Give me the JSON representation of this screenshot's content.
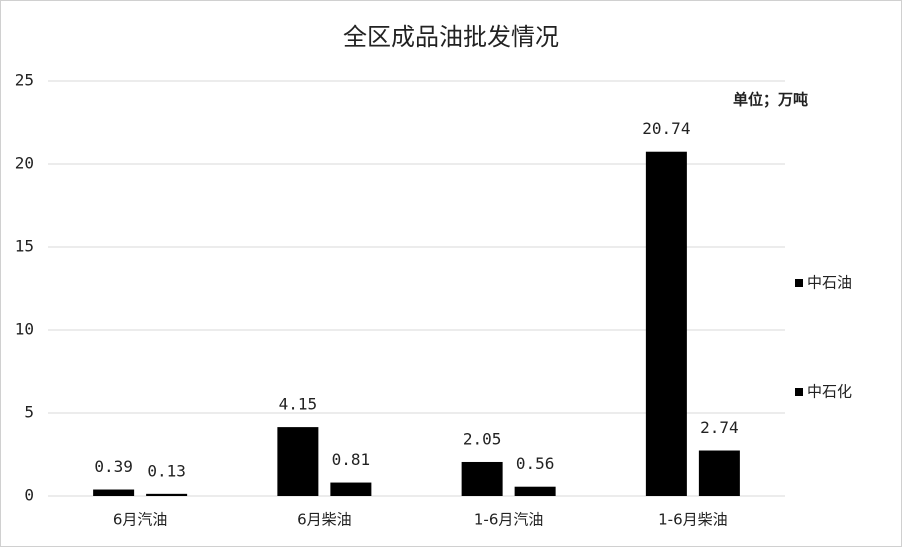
{
  "chart_data": {
    "type": "bar",
    "title": "全区成品油批发情况",
    "annotation": "单位；万吨",
    "categories": [
      "6月汽油",
      "6月柴油",
      "1-6月汽油",
      "1-6月柴油"
    ],
    "series": [
      {
        "name": "中石油",
        "color": "#000000",
        "values": [
          0.39,
          4.15,
          2.05,
          20.74
        ]
      },
      {
        "name": "中石化",
        "color": "#000000",
        "values": [
          0.13,
          0.81,
          0.56,
          2.74
        ]
      }
    ],
    "ylim": [
      0,
      25
    ],
    "yticks": [
      0,
      5,
      10,
      15,
      20,
      25
    ],
    "grid": true,
    "legend": "right"
  }
}
